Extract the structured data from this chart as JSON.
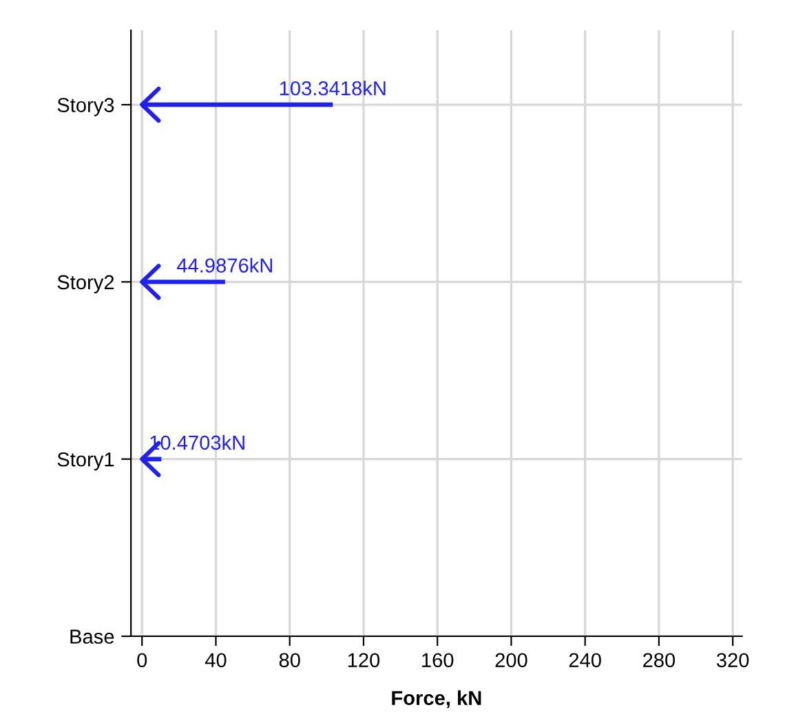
{
  "chart_data": {
    "type": "bar",
    "orientation": "horizontal",
    "categories": [
      "Story3",
      "Story2",
      "Story1",
      "Base"
    ],
    "values": [
      103.3418,
      44.9876,
      10.4703,
      null
    ],
    "value_labels": [
      "103.3418kN",
      "44.9876kN",
      "10.4703kN",
      null
    ],
    "color": "#2020f0",
    "xlabel": "Force, kN",
    "xlim": [
      -6,
      325
    ],
    "xticks": [
      0,
      40,
      80,
      120,
      160,
      200,
      240,
      280,
      320
    ],
    "grid": true
  }
}
